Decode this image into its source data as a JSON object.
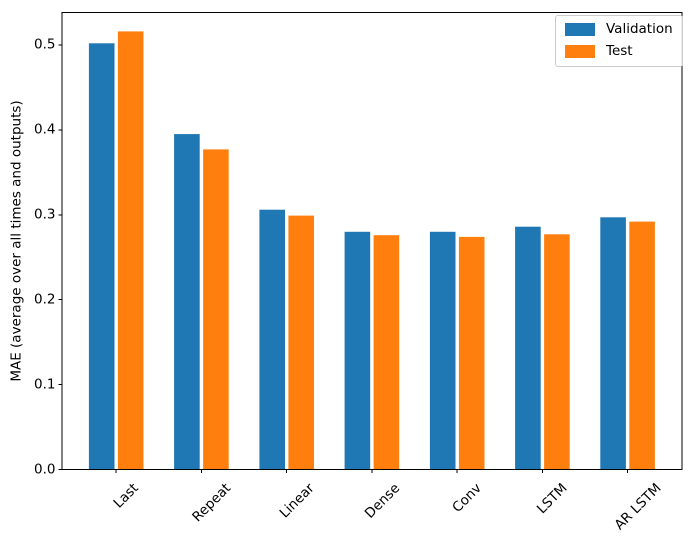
{
  "figure": {
    "background": "#ffffff"
  },
  "chart_data": {
    "type": "bar",
    "title": "",
    "xlabel": "",
    "ylabel": "MAE (average over all times and outputs)",
    "categories": [
      "Last",
      "Repeat",
      "Linear",
      "Dense",
      "Conv",
      "LSTM",
      "AR LSTM"
    ],
    "series": [
      {
        "name": "Validation",
        "color": "#1f77b4",
        "values": [
          0.502,
          0.395,
          0.306,
          0.28,
          0.28,
          0.286,
          0.297
        ]
      },
      {
        "name": "Test",
        "color": "#ff7f0e",
        "values": [
          0.516,
          0.377,
          0.299,
          0.276,
          0.274,
          0.277,
          0.292
        ]
      }
    ],
    "yticks": [
      0.0,
      0.1,
      0.2,
      0.3,
      0.4,
      0.5
    ],
    "ytick_labels": [
      "0.0",
      "0.1",
      "0.2",
      "0.3",
      "0.4",
      "0.5"
    ],
    "ylim": [
      0,
      0.538
    ],
    "xtick_rotation_deg": 45,
    "grid": false,
    "legend_position": "upper right",
    "axis_color": "#000000",
    "legend_border_color": "#cccccc"
  }
}
